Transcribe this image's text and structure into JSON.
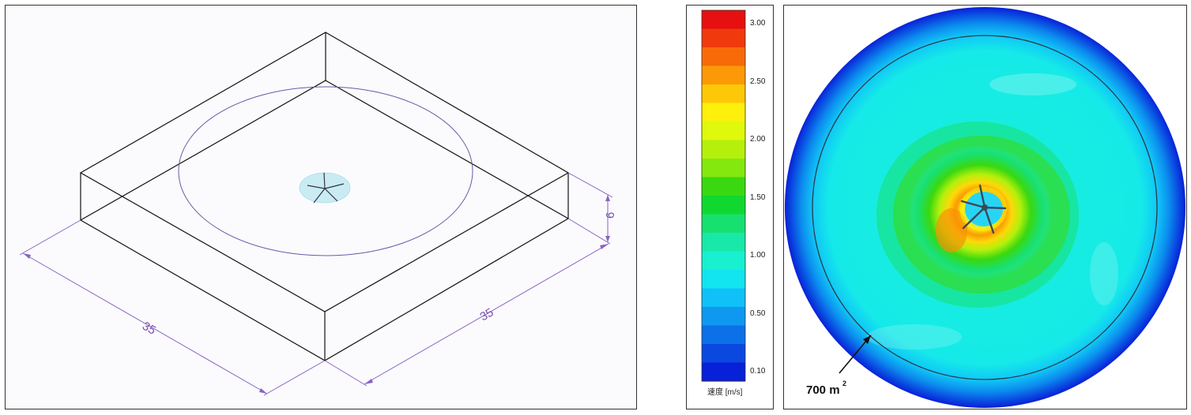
{
  "isometric": {
    "dim_depth": "35",
    "dim_width": "35",
    "dim_height": "6"
  },
  "legend": {
    "ticks": [
      "3.00",
      "2.50",
      "2.00",
      "1.50",
      "1.00",
      "0.50",
      "0.10"
    ],
    "caption": "速度 [m/s]",
    "colors": [
      "#e61010",
      "#f03a0c",
      "#f86a08",
      "#fb9a06",
      "#fdc808",
      "#fdf00c",
      "#dff80c",
      "#b4f00c",
      "#84e80e",
      "#3ad810",
      "#10d830",
      "#18e070",
      "#18e8a8",
      "#18f0d0",
      "#12e4f0",
      "#10c0f8",
      "#0e98f0",
      "#0c70e8",
      "#0a48e0",
      "#0820d8"
    ]
  },
  "contour": {
    "area_label": "700 m",
    "area_sup": "2"
  }
}
